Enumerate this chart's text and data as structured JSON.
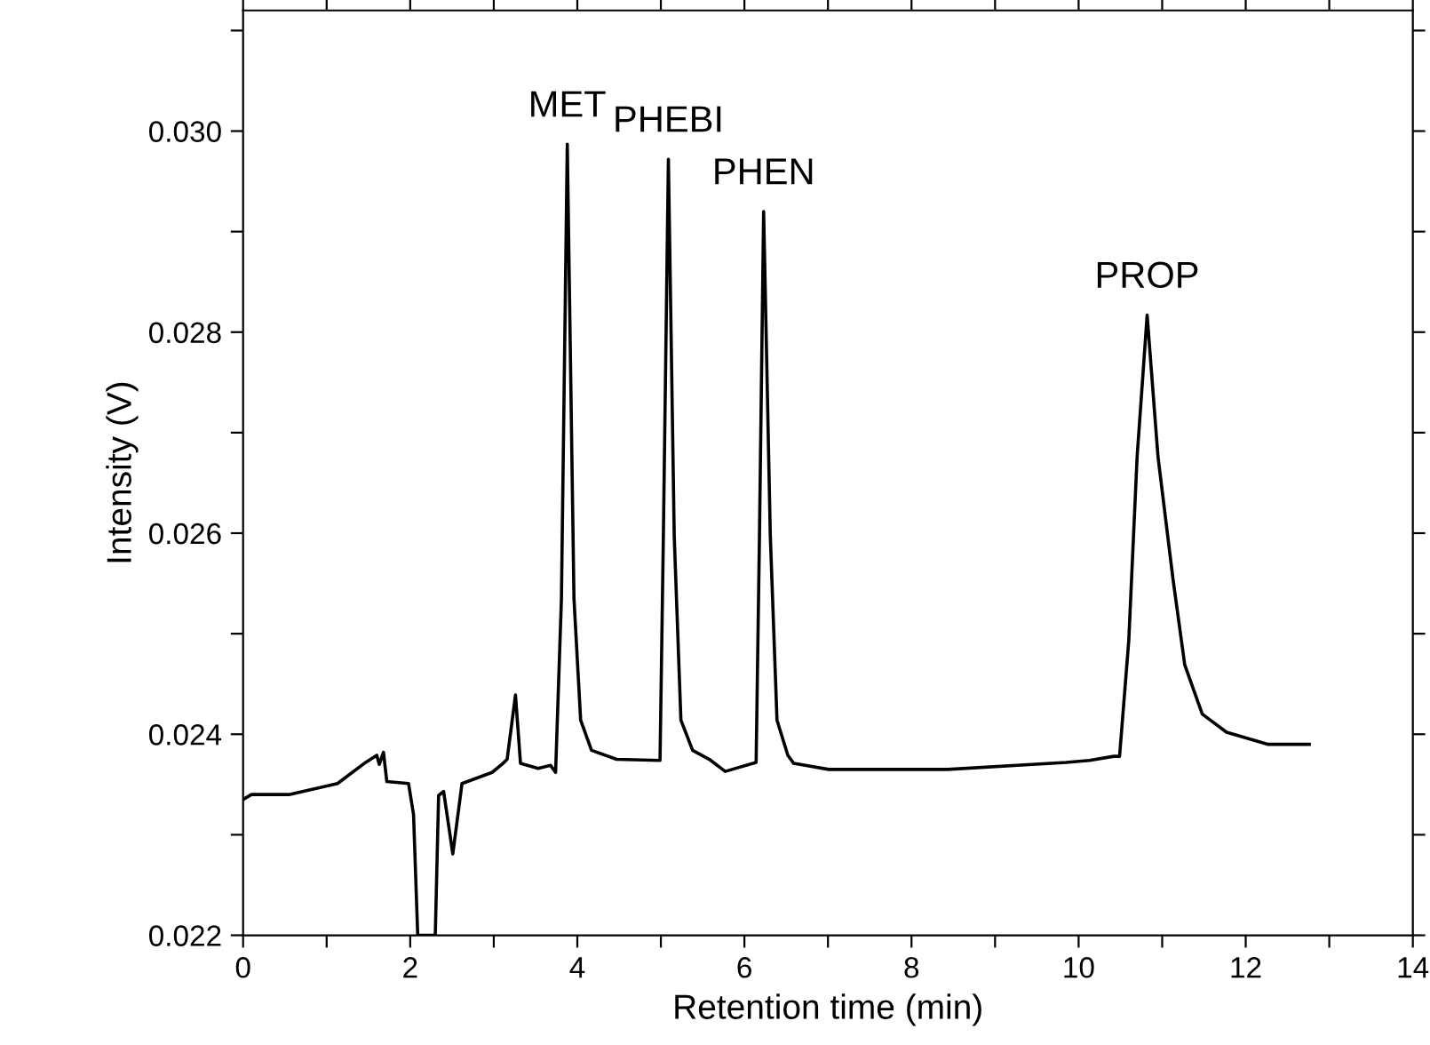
{
  "chart_data": {
    "type": "line",
    "xlabel": "Retention time (min)",
    "ylabel": "Intensity (V)",
    "x": [
      0,
      0.1,
      0.55,
      1.13,
      1.45,
      1.6,
      1.63,
      1.68,
      1.72,
      1.98,
      2.04,
      2.09,
      2.3,
      2.34,
      2.4,
      2.51,
      2.62,
      2.98,
      3.11,
      3.16,
      3.26,
      3.32,
      3.53,
      3.68,
      3.74,
      3.81,
      3.88,
      3.96,
      4.04,
      4.17,
      4.47,
      4.99,
      5.03,
      5.09,
      5.16,
      5.24,
      5.38,
      5.58,
      5.77,
      6.14,
      6.18,
      6.23,
      6.31,
      6.39,
      6.52,
      6.59,
      7.01,
      8.43,
      9.85,
      10.13,
      10.42,
      10.49,
      10.6,
      10.7,
      10.82,
      10.95,
      11.13,
      11.27,
      11.48,
      11.77,
      12.26,
      12.76
    ],
    "series": [
      {
        "color": "#000000",
        "values": [
          0.02335,
          0.0234,
          0.0234,
          0.02351,
          0.02371,
          0.02379,
          0.0237,
          0.02382,
          0.02353,
          0.02351,
          0.0232,
          0.022,
          0.022,
          0.02339,
          0.02343,
          0.02281,
          0.02351,
          0.02362,
          0.02371,
          0.02375,
          0.02439,
          0.02371,
          0.02366,
          0.02369,
          0.02362,
          0.02535,
          0.02987,
          0.02535,
          0.02414,
          0.02384,
          0.02375,
          0.02374,
          0.02597,
          0.02972,
          0.02597,
          0.02414,
          0.02384,
          0.02375,
          0.02363,
          0.02372,
          0.02597,
          0.0292,
          0.02597,
          0.02414,
          0.02379,
          0.02371,
          0.02365,
          0.02365,
          0.02372,
          0.02374,
          0.02378,
          0.02378,
          0.02493,
          0.02676,
          0.02817,
          0.02676,
          0.02554,
          0.02469,
          0.0242,
          0.02402,
          0.0239,
          0.0239
        ]
      }
    ],
    "annotations": [
      {
        "text": "MET",
        "x": 3.88,
        "y": 0.02987
      },
      {
        "text": "PHEBI",
        "x": 5.09,
        "y": 0.02972
      },
      {
        "text": "PHEN",
        "x": 6.23,
        "y": 0.0292
      },
      {
        "text": "PROP",
        "x": 10.82,
        "y": 0.02817
      }
    ],
    "xlim": [
      0,
      14
    ],
    "ylim": [
      0.022,
      0.0312
    ],
    "xticks": [
      0,
      {
        "value": 1,
        "label": null
      },
      2,
      {
        "value": 3,
        "label": null
      },
      4,
      {
        "value": 5,
        "label": null
      },
      6,
      {
        "value": 7,
        "label": null
      },
      8,
      {
        "value": 9,
        "label": null
      },
      10,
      {
        "value": 11,
        "label": null
      },
      12,
      {
        "value": 13,
        "label": null
      },
      14
    ],
    "yticks": [
      {
        "value": 0.022,
        "label": "0.022"
      },
      {
        "value": 0.023,
        "label": null
      },
      {
        "value": 0.024,
        "label": "0.024"
      },
      {
        "value": 0.025,
        "label": null
      },
      {
        "value": 0.026,
        "label": "0.026"
      },
      {
        "value": 0.027,
        "label": null
      },
      {
        "value": 0.028,
        "label": "0.028"
      },
      {
        "value": 0.029,
        "label": null
      },
      {
        "value": 0.03,
        "label": "0.030"
      },
      {
        "value": 0.031,
        "label": null
      }
    ],
    "grid": false,
    "marker": "none",
    "line_style": "solid"
  }
}
